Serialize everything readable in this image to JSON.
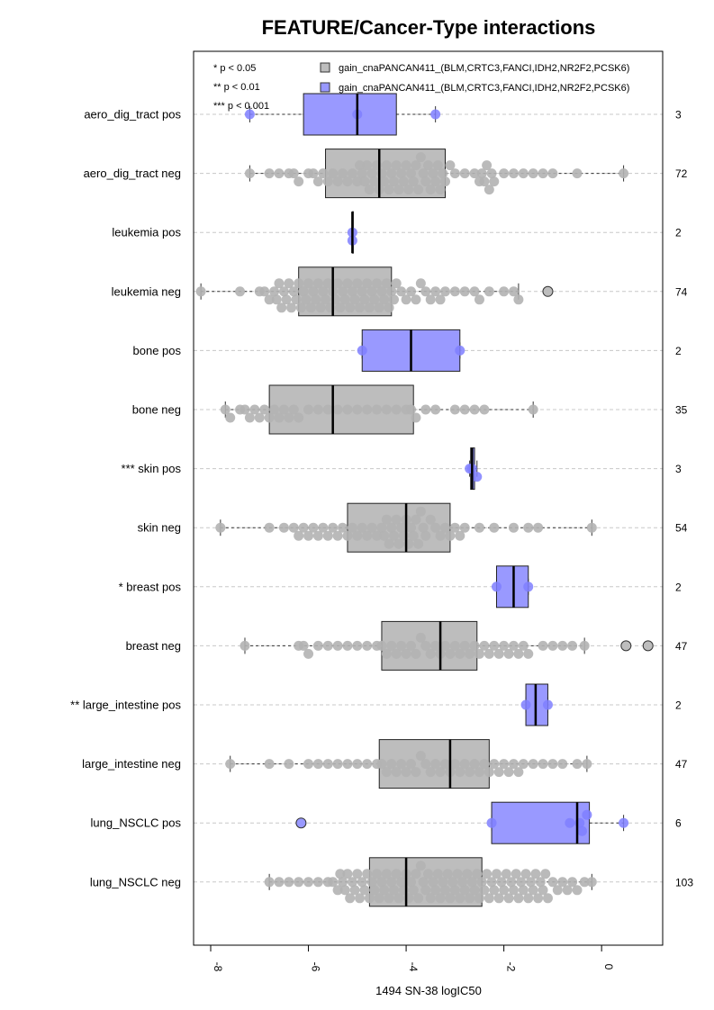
{
  "chart_data": {
    "type": "box",
    "orientation": "horizontal",
    "title": "FEATURE/Cancer-Type interactions",
    "xlabel": "1494 SN-38 logIC50",
    "xlim": [
      -8.35,
      1.25
    ],
    "x_ticks": [
      "-8",
      "-6",
      "-4",
      "-2",
      "0"
    ],
    "x_tick_values": [
      -8,
      -6,
      -4,
      -2,
      0
    ],
    "grid": "dashed horizontal line per row",
    "legend_position": "top",
    "legend": {
      "pvalues": [
        "* p < 0.05",
        "** p < 0.01",
        "*** p < 0.001"
      ],
      "series": [
        {
          "label": "gain_cnaPANCAN411_(BLM,CRTC3,FANCI,IDH2,NR2F2,PCSK6)",
          "color": "#bdbdbd"
        },
        {
          "label": "gain_cnaPANCAN411_(BLM,CRTC3,FANCI,IDH2,NR2F2,PCSK6)",
          "color": "#9999ff"
        }
      ]
    },
    "colors": {
      "pos_box": "#9999ff",
      "neg_box": "#bdbdbd",
      "pos_point": "#7f7fff",
      "neg_point": "#b3b3b3",
      "grid": "#c8c8c8"
    },
    "rows": [
      {
        "label": "aero_dig_tract pos",
        "group": "pos",
        "n": "3",
        "whisker_low": -7.2,
        "q1": -6.1,
        "median": -5.0,
        "q3": -4.2,
        "whisker_high": -3.4,
        "points": [
          -7.2,
          -5.0,
          -3.4
        ],
        "outliers": []
      },
      {
        "label": "aero_dig_tract neg",
        "group": "neg",
        "n": "72",
        "whisker_low": -7.2,
        "q1": -5.65,
        "median": -4.55,
        "q3": -3.2,
        "whisker_high": 0.45,
        "points": [
          -7.2,
          -6.8,
          -6.6,
          -6.4,
          -6.3,
          -6.2,
          -6.0,
          -5.9,
          -5.8,
          -5.7,
          -5.6,
          -5.5,
          -5.4,
          -5.3,
          -5.2,
          -5.1,
          -5.0,
          -4.95,
          -4.9,
          -4.85,
          -4.8,
          -4.75,
          -4.7,
          -4.65,
          -4.6,
          -4.55,
          -4.5,
          -4.45,
          -4.4,
          -4.35,
          -4.3,
          -4.25,
          -4.2,
          -4.15,
          -4.1,
          -4.05,
          -4.0,
          -3.95,
          -3.9,
          -3.85,
          -3.8,
          -3.75,
          -3.7,
          -3.65,
          -3.6,
          -3.55,
          -3.5,
          -3.45,
          -3.4,
          -3.35,
          -3.3,
          -3.25,
          -3.2,
          -3.1,
          -3.0,
          -2.8,
          -2.6,
          -2.5,
          -2.45,
          -2.4,
          -2.35,
          -2.3,
          -2.25,
          -2.2,
          -2.0,
          -1.8,
          -1.6,
          -1.4,
          -1.2,
          -1.0,
          -0.5,
          0.45
        ],
        "outliers": []
      },
      {
        "label": "leukemia pos",
        "group": "pos",
        "n": "2",
        "whisker_low": -5.1,
        "q1": -5.1,
        "median": -5.1,
        "q3": -5.1,
        "whisker_high": -5.1,
        "points": [
          -5.1,
          -5.1
        ],
        "outliers": []
      },
      {
        "label": "leukemia neg",
        "group": "neg",
        "n": "74",
        "whisker_low": -8.2,
        "q1": -6.2,
        "median": -5.5,
        "q3": -4.3,
        "whisker_high": -1.7,
        "points": [
          -8.2,
          -7.4,
          -7.0,
          -6.9,
          -6.8,
          -6.7,
          -6.65,
          -6.6,
          -6.55,
          -6.5,
          -6.45,
          -6.4,
          -6.35,
          -6.3,
          -6.25,
          -6.2,
          -6.15,
          -6.1,
          -6.05,
          -6.0,
          -5.95,
          -5.9,
          -5.85,
          -5.8,
          -5.75,
          -5.7,
          -5.65,
          -5.6,
          -5.55,
          -5.5,
          -5.45,
          -5.4,
          -5.35,
          -5.3,
          -5.25,
          -5.2,
          -5.15,
          -5.1,
          -5.05,
          -5.0,
          -4.95,
          -4.9,
          -4.85,
          -4.8,
          -4.75,
          -4.7,
          -4.65,
          -4.6,
          -4.55,
          -4.5,
          -4.45,
          -4.4,
          -4.35,
          -4.3,
          -4.25,
          -4.2,
          -4.1,
          -4.0,
          -3.9,
          -3.8,
          -3.7,
          -3.6,
          -3.5,
          -3.4,
          -3.3,
          -3.2,
          -3.0,
          -2.8,
          -2.6,
          -2.5,
          -2.3,
          -2.0,
          -1.8,
          -1.7
        ],
        "outliers": [
          -1.1
        ]
      },
      {
        "label": "bone pos",
        "group": "pos",
        "n": "2",
        "whisker_low": -4.9,
        "q1": -4.9,
        "median": -3.9,
        "q3": -2.9,
        "whisker_high": -2.9,
        "points": [
          -4.9,
          -2.9
        ],
        "outliers": []
      },
      {
        "label": "bone neg",
        "group": "neg",
        "n": "35",
        "whisker_low": -7.7,
        "q1": -6.8,
        "median": -5.5,
        "q3": -3.85,
        "whisker_high": -1.4,
        "points": [
          -7.7,
          -7.6,
          -7.4,
          -7.3,
          -7.2,
          -7.1,
          -7.0,
          -6.9,
          -6.8,
          -6.7,
          -6.6,
          -6.5,
          -6.4,
          -6.3,
          -6.2,
          -6.0,
          -5.8,
          -5.6,
          -5.4,
          -5.2,
          -5.0,
          -4.8,
          -4.6,
          -4.4,
          -4.2,
          -4.0,
          -3.9,
          -3.8,
          -3.6,
          -3.4,
          -3.0,
          -2.8,
          -2.6,
          -2.4,
          -1.4
        ],
        "outliers": []
      },
      {
        "label": "skin pos",
        "prefix": "***",
        "group": "pos",
        "n": "3",
        "whisker_low": -2.7,
        "q1": -2.68,
        "median": -2.65,
        "q3": -2.6,
        "whisker_high": -2.55,
        "points": [
          -2.7,
          -2.65,
          -2.55
        ],
        "outliers": []
      },
      {
        "label": "skin neg",
        "group": "neg",
        "n": "54",
        "whisker_low": -7.8,
        "q1": -5.2,
        "median": -4.0,
        "q3": -3.1,
        "whisker_high": -0.2,
        "points": [
          -7.8,
          -6.8,
          -6.5,
          -6.3,
          -6.2,
          -6.1,
          -6.0,
          -5.9,
          -5.8,
          -5.7,
          -5.6,
          -5.5,
          -5.4,
          -5.3,
          -5.2,
          -5.1,
          -5.0,
          -4.9,
          -4.8,
          -4.7,
          -4.6,
          -4.5,
          -4.45,
          -4.4,
          -4.35,
          -4.3,
          -4.25,
          -4.2,
          -4.15,
          -4.1,
          -4.05,
          -4.0,
          -3.95,
          -3.9,
          -3.85,
          -3.8,
          -3.75,
          -3.7,
          -3.65,
          -3.6,
          -3.5,
          -3.4,
          -3.3,
          -3.2,
          -3.1,
          -3.0,
          -2.9,
          -2.8,
          -2.5,
          -2.2,
          -1.8,
          -1.5,
          -1.3,
          -0.2
        ],
        "outliers": []
      },
      {
        "label": "breast pos",
        "prefix": "*",
        "group": "pos",
        "n": "2",
        "whisker_low": -2.15,
        "q1": -2.15,
        "median": -1.8,
        "q3": -1.5,
        "whisker_high": -1.5,
        "points": [
          -2.15,
          -1.5
        ],
        "outliers": []
      },
      {
        "label": "breast neg",
        "group": "neg",
        "n": "47",
        "whisker_low": -7.3,
        "q1": -4.5,
        "median": -3.3,
        "q3": -2.55,
        "whisker_high": -0.35,
        "points": [
          -7.3,
          -6.2,
          -6.1,
          -6.0,
          -5.8,
          -5.6,
          -5.4,
          -5.2,
          -5.0,
          -4.8,
          -4.6,
          -4.5,
          -4.4,
          -4.3,
          -4.2,
          -4.1,
          -4.0,
          -3.9,
          -3.8,
          -3.7,
          -3.6,
          -3.5,
          -3.4,
          -3.3,
          -3.2,
          -3.1,
          -3.0,
          -2.9,
          -2.8,
          -2.7,
          -2.6,
          -2.5,
          -2.4,
          -2.3,
          -2.2,
          -2.1,
          -2.0,
          -1.9,
          -1.8,
          -1.7,
          -1.6,
          -1.5,
          -1.2,
          -1.0,
          -0.8,
          -0.6,
          -0.35
        ],
        "outliers": [
          0.5,
          0.95
        ]
      },
      {
        "label": "large_intestine pos",
        "prefix": "**",
        "group": "pos",
        "n": "2",
        "whisker_low": -1.55,
        "q1": -1.55,
        "median": -1.35,
        "q3": -1.1,
        "whisker_high": -1.1,
        "points": [
          -1.55,
          -1.1
        ],
        "outliers": []
      },
      {
        "label": "large_intestine neg",
        "group": "neg",
        "n": "47",
        "whisker_low": -7.6,
        "q1": -4.55,
        "median": -3.1,
        "q3": -2.3,
        "whisker_high": -0.3,
        "points": [
          -7.6,
          -6.8,
          -6.4,
          -6.0,
          -5.8,
          -5.6,
          -5.4,
          -5.2,
          -5.0,
          -4.8,
          -4.6,
          -4.5,
          -4.4,
          -4.3,
          -4.2,
          -4.1,
          -4.0,
          -3.9,
          -3.8,
          -3.7,
          -3.6,
          -3.5,
          -3.4,
          -3.3,
          -3.2,
          -3.1,
          -3.0,
          -2.9,
          -2.8,
          -2.7,
          -2.6,
          -2.5,
          -2.4,
          -2.3,
          -2.2,
          -2.1,
          -2.0,
          -1.9,
          -1.8,
          -1.7,
          -1.6,
          -1.4,
          -1.2,
          -1.0,
          -0.8,
          -0.5,
          -0.3
        ],
        "outliers": []
      },
      {
        "label": "lung_NSCLC pos",
        "group": "pos",
        "n": "6",
        "whisker_low": -2.25,
        "q1": -2.25,
        "median": -0.5,
        "q3": -0.25,
        "whisker_high": 0.45,
        "points": [
          -2.25,
          -0.65,
          -0.45,
          -0.4,
          -0.3,
          0.45
        ],
        "outliers": [
          -6.15
        ]
      },
      {
        "label": "lung_NSCLC neg",
        "group": "neg",
        "n": "103",
        "whisker_low": -6.8,
        "q1": -4.75,
        "median": -4.0,
        "q3": -2.45,
        "whisker_high": -0.2,
        "points": [
          -6.8,
          -6.6,
          -6.4,
          -6.2,
          -6.0,
          -5.8,
          -5.6,
          -5.5,
          -5.4,
          -5.35,
          -5.3,
          -5.25,
          -5.2,
          -5.15,
          -5.1,
          -5.05,
          -5.0,
          -4.95,
          -4.9,
          -4.85,
          -4.8,
          -4.75,
          -4.7,
          -4.65,
          -4.6,
          -4.55,
          -4.5,
          -4.45,
          -4.4,
          -4.35,
          -4.3,
          -4.25,
          -4.2,
          -4.15,
          -4.1,
          -4.05,
          -4.0,
          -3.95,
          -3.9,
          -3.85,
          -3.8,
          -3.75,
          -3.7,
          -3.65,
          -3.6,
          -3.55,
          -3.5,
          -3.45,
          -3.4,
          -3.35,
          -3.3,
          -3.25,
          -3.2,
          -3.15,
          -3.1,
          -3.05,
          -3.0,
          -2.95,
          -2.9,
          -2.85,
          -2.8,
          -2.75,
          -2.7,
          -2.65,
          -2.6,
          -2.55,
          -2.5,
          -2.45,
          -2.4,
          -2.35,
          -2.3,
          -2.25,
          -2.2,
          -2.15,
          -2.1,
          -2.05,
          -2.0,
          -1.95,
          -1.9,
          -1.85,
          -1.8,
          -1.75,
          -1.7,
          -1.65,
          -1.6,
          -1.55,
          -1.5,
          -1.45,
          -1.4,
          -1.35,
          -1.3,
          -1.25,
          -1.2,
          -1.15,
          -1.1,
          -1.0,
          -0.9,
          -0.8,
          -0.7,
          -0.6,
          -0.5,
          -0.35,
          -0.2
        ],
        "outliers": []
      }
    ]
  }
}
